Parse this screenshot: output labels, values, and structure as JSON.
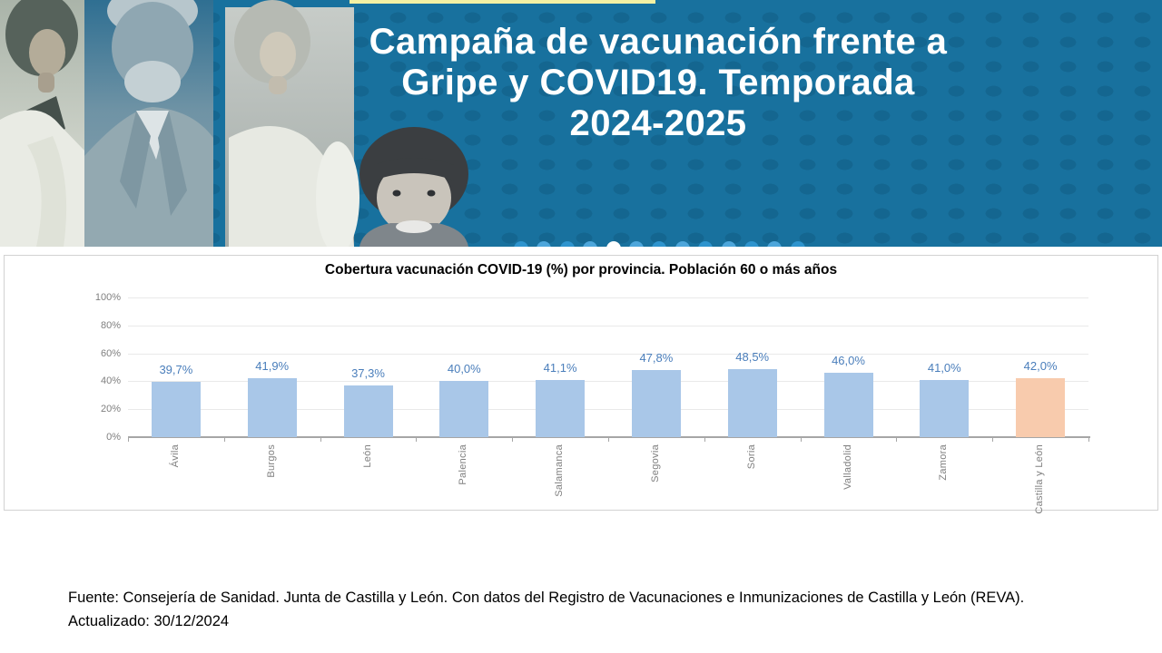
{
  "header": {
    "title": "Campaña de vacunación frente a Gripe y COVID19. Temporada 2024-2025",
    "title_lines": [
      "Campaña de vacunación frente a",
      "Gripe y COVID19. Temporada",
      "2024-2025"
    ],
    "background_color": "#18719E",
    "accent_strip_color": "#F4F1A3",
    "photos": [
      "female-doctor-photo",
      "older-man-photo",
      "young-woman-photo",
      "child-photo"
    ]
  },
  "chart_data": {
    "type": "bar",
    "title": "Cobertura vacunación COVID-19 (%) por provincia. Población 60 o más años",
    "categories": [
      "Ávila",
      "Burgos",
      "León",
      "Palencia",
      "Salamanca",
      "Segovia",
      "Soria",
      "Valladolid",
      "Zamora",
      "Castilla  y León"
    ],
    "values": [
      39.7,
      41.9,
      37.3,
      40.0,
      41.1,
      47.8,
      48.5,
      46.0,
      41.0,
      42.0
    ],
    "value_labels": [
      "39,7%",
      "41,9%",
      "37,3%",
      "40,0%",
      "41,1%",
      "47,8%",
      "48,5%",
      "46,0%",
      "41,0%",
      "42,0%"
    ],
    "xlabel": "",
    "ylabel": "",
    "ylim": [
      0,
      100
    ],
    "y_ticks": [
      0,
      20,
      40,
      60,
      80,
      100
    ],
    "y_tick_labels": [
      "0%",
      "20%",
      "40%",
      "60%",
      "80%",
      "100%"
    ],
    "grid": true,
    "legend": "none",
    "bar_color": "#A9C7E8",
    "highlight_index": 9,
    "highlight_color": "#F8CBAD",
    "label_color": "#4A7EBB"
  },
  "footer": {
    "line1": "Fuente: Consejería de Sanidad. Junta de Castilla y León. Con datos del Registro de Vacunaciones e Inmunizaciones  de Castilla y León (REVA).",
    "line2": "Actualizado: 30/12/2024"
  }
}
